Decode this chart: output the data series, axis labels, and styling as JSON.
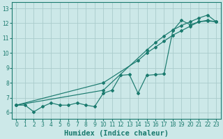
{
  "title": "",
  "xlabel": "Humidex (Indice chaleur)",
  "ylabel": "",
  "xlim": [
    -0.5,
    23.5
  ],
  "ylim": [
    5.6,
    13.4
  ],
  "xticks": [
    0,
    1,
    2,
    3,
    4,
    5,
    6,
    7,
    8,
    9,
    10,
    11,
    12,
    13,
    14,
    15,
    16,
    17,
    18,
    19,
    20,
    21,
    22,
    23
  ],
  "yticks": [
    6,
    7,
    8,
    9,
    10,
    11,
    12,
    13
  ],
  "bg_color": "#cce8e8",
  "grid_color": "#aacccc",
  "line_color": "#1a7a6e",
  "wiggly_x": [
    0,
    1,
    2,
    3,
    4,
    5,
    6,
    7,
    8,
    9,
    10,
    11,
    12,
    13,
    14,
    15,
    16,
    17,
    18,
    19,
    20,
    21,
    22,
    23
  ],
  "wiggly_y": [
    6.5,
    6.5,
    6.05,
    6.4,
    6.65,
    6.5,
    6.5,
    6.65,
    6.5,
    6.4,
    7.3,
    7.5,
    8.5,
    8.55,
    7.3,
    8.5,
    8.55,
    8.6,
    11.5,
    12.2,
    11.9,
    12.1,
    12.2,
    12.1
  ],
  "straight1_x": [
    0,
    10,
    14,
    15,
    16,
    17,
    18,
    19,
    20,
    21,
    22,
    23
  ],
  "straight1_y": [
    6.5,
    8.0,
    9.5,
    10.0,
    10.4,
    10.8,
    11.2,
    11.5,
    11.8,
    12.1,
    12.15,
    12.1
  ],
  "straight2_x": [
    0,
    10,
    15,
    16,
    17,
    18,
    19,
    20,
    21,
    22,
    23
  ],
  "straight2_y": [
    6.5,
    7.5,
    10.2,
    10.7,
    11.15,
    11.55,
    11.85,
    12.1,
    12.35,
    12.55,
    12.1
  ],
  "xlabel_fontsize": 7.5,
  "tick_fontsize": 5.5
}
